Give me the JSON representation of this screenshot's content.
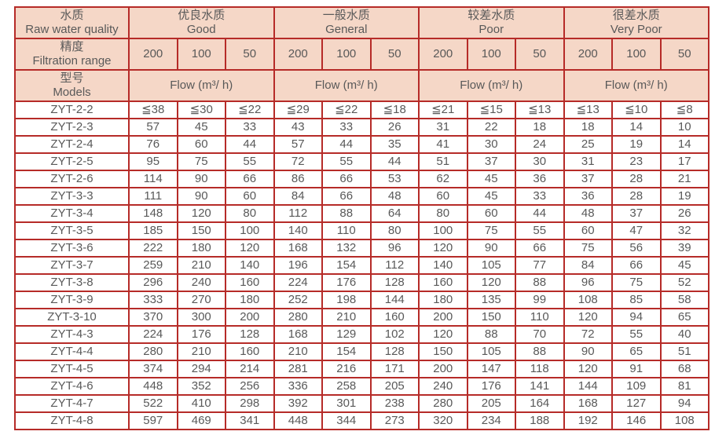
{
  "colors": {
    "border": "#b62b28",
    "header_bg": "#f5d7c7",
    "text": "#595959",
    "page_bg": "#ffffff"
  },
  "table": {
    "corner_headers": [
      {
        "zh": "水质",
        "en": "Raw water quality"
      },
      {
        "zh": "精度",
        "en": "Filtration range"
      },
      {
        "zh": "型号",
        "en": "Models"
      }
    ],
    "quality_groups": [
      {
        "zh": "优良水质",
        "en": "Good"
      },
      {
        "zh": "一般水质",
        "en": "General"
      },
      {
        "zh": "较差水质",
        "en": "Poor"
      },
      {
        "zh": "很差水质",
        "en": "Very Poor"
      }
    ],
    "filtration_values": [
      "200",
      "100",
      "50"
    ],
    "flow_label": "Flow (m³/ h)",
    "rows": [
      {
        "model": "ZYT-2-2",
        "values": [
          "≦38",
          "≦30",
          "≦22",
          "≦29",
          "≦22",
          "≦18",
          "≦21",
          "≦15",
          "≦13",
          "≦13",
          "≦10",
          "≦8"
        ]
      },
      {
        "model": "ZYT-2-3",
        "values": [
          "57",
          "45",
          "33",
          "43",
          "33",
          "26",
          "31",
          "22",
          "18",
          "18",
          "14",
          "10"
        ]
      },
      {
        "model": "ZYT-2-4",
        "values": [
          "76",
          "60",
          "44",
          "57",
          "44",
          "35",
          "41",
          "30",
          "24",
          "25",
          "19",
          "14"
        ]
      },
      {
        "model": "ZYT-2-5",
        "values": [
          "95",
          "75",
          "55",
          "72",
          "55",
          "44",
          "51",
          "37",
          "30",
          "31",
          "23",
          "17"
        ]
      },
      {
        "model": "ZYT-2-6",
        "values": [
          "114",
          "90",
          "66",
          "86",
          "66",
          "53",
          "62",
          "45",
          "36",
          "37",
          "28",
          "21"
        ]
      },
      {
        "model": "ZYT-3-3",
        "values": [
          "111",
          "90",
          "60",
          "84",
          "66",
          "48",
          "60",
          "45",
          "33",
          "36",
          "28",
          "19"
        ]
      },
      {
        "model": "ZYT-3-4",
        "values": [
          "148",
          "120",
          "80",
          "112",
          "88",
          "64",
          "80",
          "60",
          "44",
          "48",
          "37",
          "26"
        ]
      },
      {
        "model": "ZYT-3-5",
        "values": [
          "185",
          "150",
          "100",
          "140",
          "110",
          "80",
          "100",
          "75",
          "55",
          "60",
          "47",
          "32"
        ]
      },
      {
        "model": "ZYT-3-6",
        "values": [
          "222",
          "180",
          "120",
          "168",
          "132",
          "96",
          "120",
          "90",
          "66",
          "75",
          "56",
          "39"
        ]
      },
      {
        "model": "ZYT-3-7",
        "values": [
          "259",
          "210",
          "140",
          "196",
          "154",
          "112",
          "140",
          "105",
          "77",
          "84",
          "66",
          "45"
        ]
      },
      {
        "model": "ZYT-3-8",
        "values": [
          "296",
          "240",
          "160",
          "224",
          "176",
          "128",
          "160",
          "120",
          "88",
          "96",
          "75",
          "52"
        ]
      },
      {
        "model": "ZYT-3-9",
        "values": [
          "333",
          "270",
          "180",
          "252",
          "198",
          "144",
          "180",
          "135",
          "99",
          "108",
          "85",
          "58"
        ]
      },
      {
        "model": "ZYT-3-10",
        "values": [
          "370",
          "300",
          "200",
          "280",
          "210",
          "160",
          "200",
          "150",
          "110",
          "120",
          "94",
          "65"
        ]
      },
      {
        "model": "ZYT-4-3",
        "values": [
          "224",
          "176",
          "128",
          "168",
          "129",
          "102",
          "120",
          "88",
          "70",
          "72",
          "55",
          "40"
        ]
      },
      {
        "model": "ZYT-4-4",
        "values": [
          "280",
          "210",
          "160",
          "210",
          "154",
          "128",
          "150",
          "105",
          "88",
          "90",
          "65",
          "51"
        ]
      },
      {
        "model": "ZYT-4-5",
        "values": [
          "374",
          "294",
          "214",
          "281",
          "216",
          "171",
          "200",
          "147",
          "118",
          "120",
          "91",
          "68"
        ]
      },
      {
        "model": "ZYT-4-6",
        "values": [
          "448",
          "352",
          "256",
          "336",
          "258",
          "205",
          "240",
          "176",
          "141",
          "144",
          "109",
          "81"
        ]
      },
      {
        "model": "ZYT-4-7",
        "values": [
          "522",
          "410",
          "298",
          "392",
          "301",
          "238",
          "280",
          "205",
          "164",
          "168",
          "127",
          "94"
        ]
      },
      {
        "model": "ZYT-4-8",
        "values": [
          "597",
          "469",
          "341",
          "448",
          "344",
          "273",
          "320",
          "234",
          "188",
          "192",
          "146",
          "108"
        ]
      }
    ]
  }
}
